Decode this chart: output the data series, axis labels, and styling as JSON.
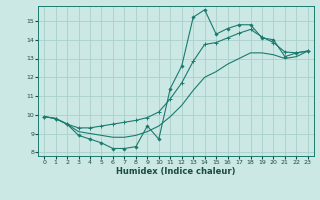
{
  "xlabel": "Humidex (Indice chaleur)",
  "bg_color": "#cce8e4",
  "grid_color": "#aacfcc",
  "line_color": "#1a7a6e",
  "xlim": [
    -0.5,
    23.5
  ],
  "ylim": [
    7.8,
    15.8
  ],
  "xticks": [
    0,
    1,
    2,
    3,
    4,
    5,
    6,
    7,
    8,
    9,
    10,
    11,
    12,
    13,
    14,
    15,
    16,
    17,
    18,
    19,
    20,
    21,
    22,
    23
  ],
  "yticks": [
    8,
    9,
    10,
    11,
    12,
    13,
    14,
    15
  ],
  "line1_x": [
    0,
    1,
    2,
    3,
    4,
    5,
    6,
    7,
    8,
    9,
    10,
    11,
    12,
    13,
    14,
    15,
    16,
    17,
    18,
    19,
    20,
    21,
    22,
    23
  ],
  "line1_y": [
    9.9,
    9.8,
    9.5,
    8.9,
    8.7,
    8.5,
    8.2,
    8.2,
    8.3,
    9.4,
    8.7,
    11.4,
    12.6,
    15.2,
    15.6,
    14.3,
    14.6,
    14.8,
    14.8,
    14.1,
    14.0,
    13.1,
    13.3,
    13.4
  ],
  "line2_x": [
    0,
    1,
    2,
    3,
    4,
    5,
    6,
    7,
    8,
    9,
    10,
    11,
    12,
    13,
    14,
    15,
    16,
    17,
    18,
    19,
    20,
    21,
    22,
    23
  ],
  "line2_y": [
    9.9,
    9.8,
    9.5,
    9.3,
    9.3,
    9.4,
    9.5,
    9.6,
    9.7,
    9.85,
    10.15,
    10.85,
    11.7,
    12.85,
    13.75,
    13.85,
    14.1,
    14.35,
    14.55,
    14.15,
    13.85,
    13.35,
    13.3,
    13.4
  ],
  "line3_x": [
    0,
    1,
    2,
    3,
    4,
    5,
    6,
    7,
    8,
    9,
    10,
    11,
    12,
    13,
    14,
    15,
    16,
    17,
    18,
    19,
    20,
    21,
    22,
    23
  ],
  "line3_y": [
    9.9,
    9.8,
    9.5,
    9.1,
    9.0,
    8.9,
    8.8,
    8.8,
    8.9,
    9.1,
    9.4,
    9.9,
    10.5,
    11.3,
    12.0,
    12.3,
    12.7,
    13.0,
    13.3,
    13.3,
    13.2,
    13.0,
    13.1,
    13.4
  ]
}
